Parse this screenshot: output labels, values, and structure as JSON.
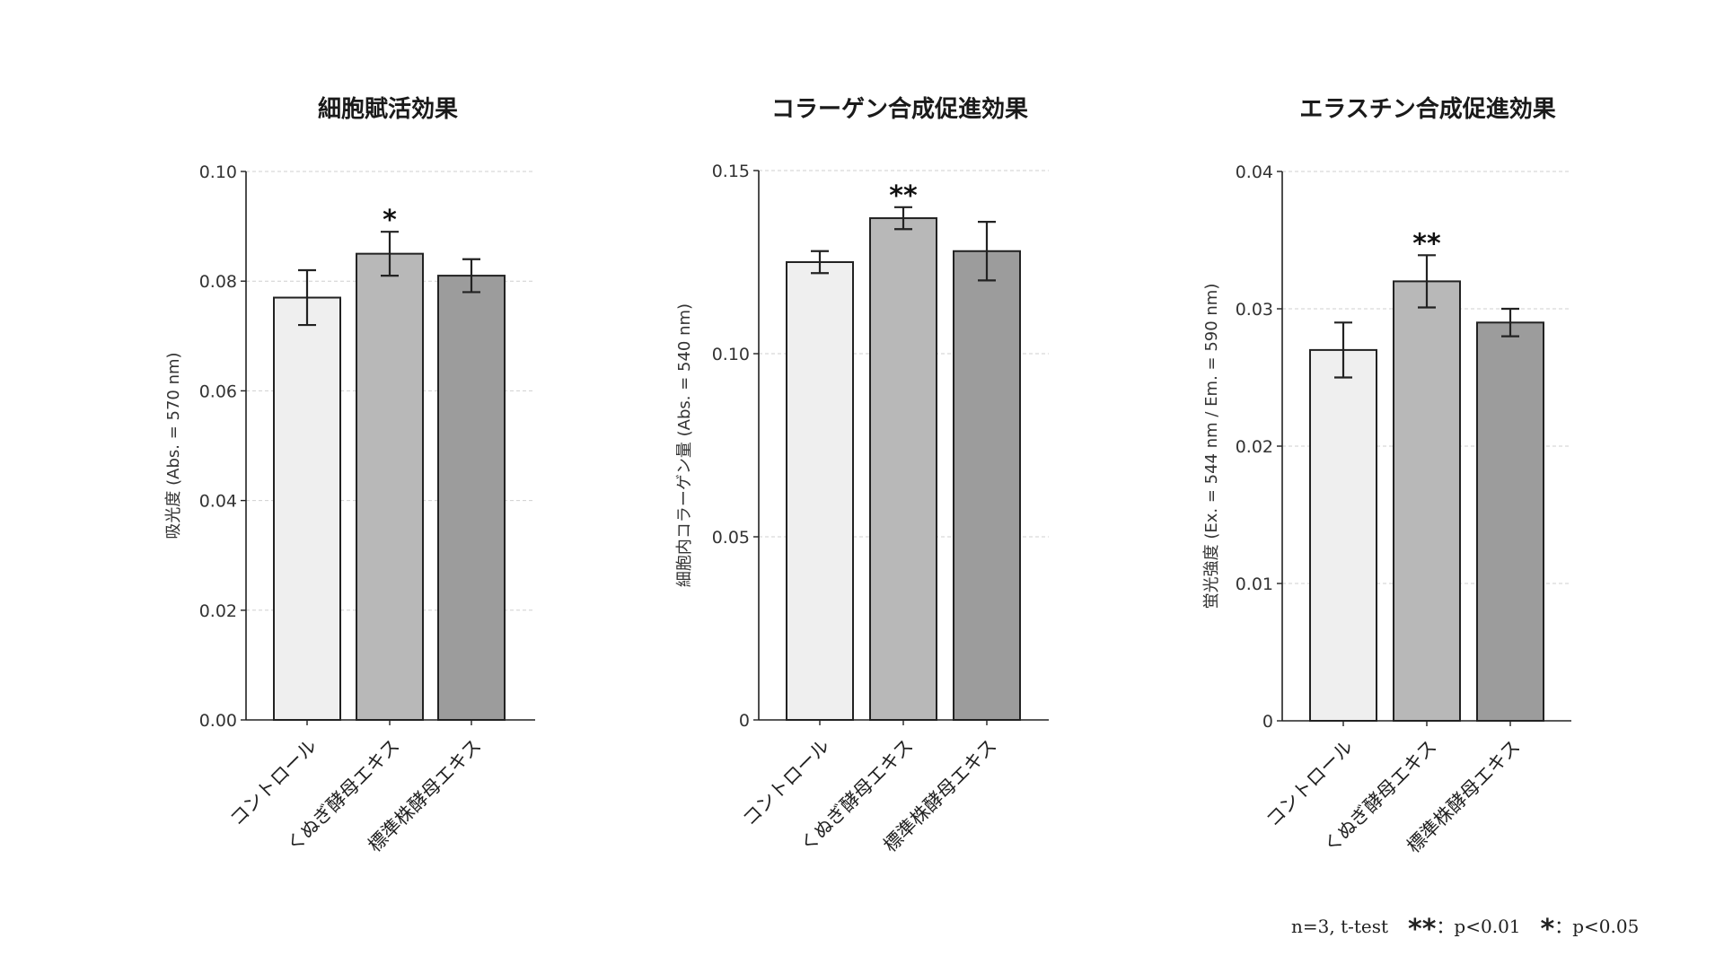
{
  "chart_data": [
    {
      "type": "bar",
      "title": "細胞賦活効果",
      "ylabel": "吸光度 (Abs. = 570 nm)",
      "categories": [
        "コントロール",
        "くぬぎ酵母エキス",
        "標準株酵母エキス"
      ],
      "values": [
        0.077,
        0.085,
        0.081
      ],
      "errors": [
        0.005,
        0.004,
        0.003
      ],
      "significance": [
        "",
        "*",
        ""
      ],
      "ylim": [
        0,
        0.1
      ],
      "yticks": [
        0.0,
        0.02,
        0.04,
        0.06,
        0.08,
        0.1
      ],
      "ytick_labels": [
        "0.00",
        "0.02",
        "0.04",
        "0.06",
        "0.08",
        "0.10"
      ],
      "colors": [
        "#efefef",
        "#b8b8b8",
        "#9c9c9c"
      ],
      "grid": true
    },
    {
      "type": "bar",
      "title": "コラーゲン合成促進効果",
      "ylabel": "細胞内コラーゲン量 (Abs. = 540 nm)",
      "categories": [
        "コントロール",
        "くぬぎ酵母エキス",
        "標準株酵母エキス"
      ],
      "values": [
        0.125,
        0.137,
        0.128
      ],
      "errors": [
        0.003,
        0.003,
        0.008
      ],
      "significance": [
        "",
        "**",
        ""
      ],
      "ylim": [
        0,
        0.15
      ],
      "yticks": [
        0,
        0.05,
        0.1,
        0.15
      ],
      "ytick_labels": [
        "0",
        "0.05",
        "0.10",
        "0.15"
      ],
      "colors": [
        "#efefef",
        "#b8b8b8",
        "#9c9c9c"
      ],
      "grid": true
    },
    {
      "type": "bar",
      "title": "エラスチン合成促進効果",
      "ylabel": "蛍光強度 (Ex. = 544 nm / Em. = 590 nm)",
      "categories": [
        "コントロール",
        "くぬぎ酵母エキス",
        "標準株酵母エキス"
      ],
      "values": [
        0.027,
        0.032,
        0.029
      ],
      "errors": [
        0.002,
        0.0019,
        0.001
      ],
      "significance": [
        "",
        "**",
        ""
      ],
      "ylim": [
        0,
        0.04
      ],
      "yticks": [
        0,
        0.01,
        0.02,
        0.03,
        0.04
      ],
      "ytick_labels": [
        "0",
        "0.01",
        "0.02",
        "0.03",
        "0.04"
      ],
      "colors": [
        "#efefef",
        "#b8b8b8",
        "#9c9c9c"
      ],
      "grid": true
    }
  ],
  "footnote": {
    "method": "n=3, t-test",
    "double_star": "**",
    "double_star_text": "：p<0.01",
    "single_star": "*",
    "single_star_text": "：p<0.05"
  }
}
